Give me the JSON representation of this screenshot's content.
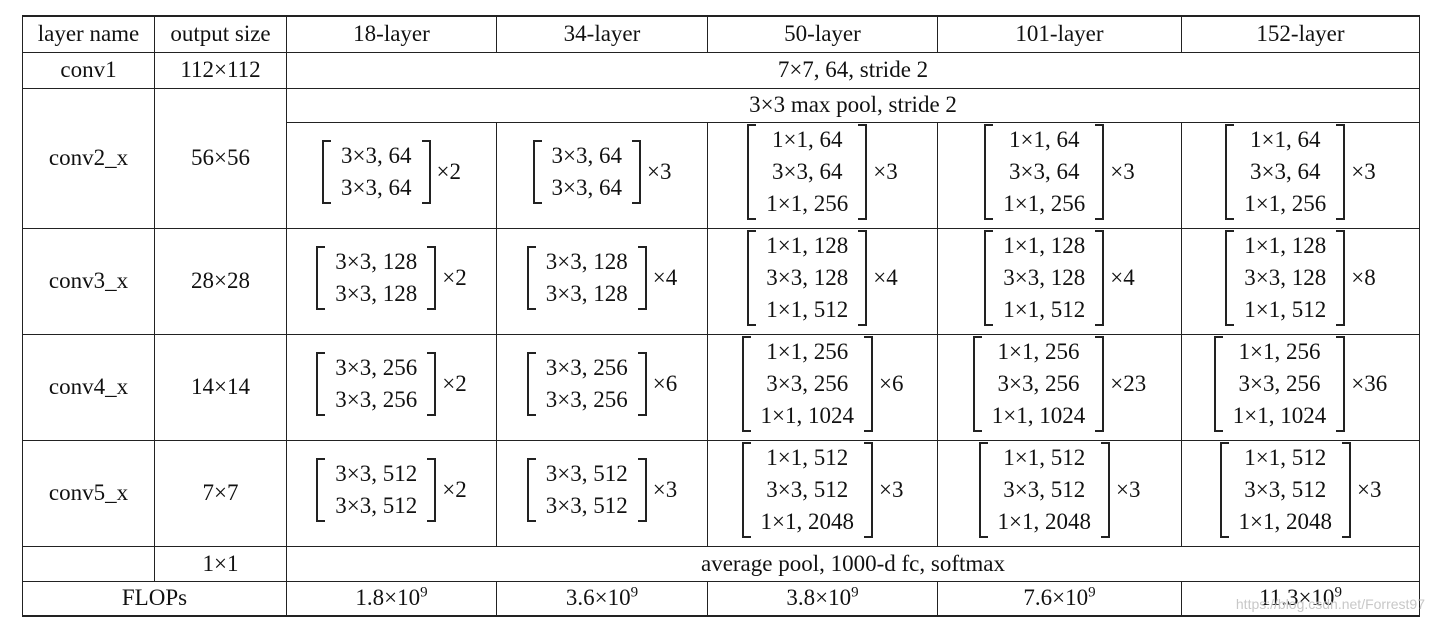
{
  "table": {
    "headers": [
      "layer name",
      "output size",
      "18-layer",
      "34-layer",
      "50-layer",
      "101-layer",
      "152-layer"
    ],
    "conv1": {
      "name": "conv1",
      "size": "112×112",
      "spec": "7×7, 64, stride 2"
    },
    "pool": {
      "spec": "3×3 max pool, stride 2"
    },
    "stages": [
      {
        "name": "conv2_x",
        "size": "56×56",
        "blocks": [
          {
            "lines": [
              "3×3, 64",
              "3×3, 64"
            ],
            "rep": "×2"
          },
          {
            "lines": [
              "3×3, 64",
              "3×3, 64"
            ],
            "rep": "×3"
          },
          {
            "lines": [
              "1×1, 64",
              "3×3, 64",
              "1×1, 256"
            ],
            "rep": "×3"
          },
          {
            "lines": [
              "1×1, 64",
              "3×3, 64",
              "1×1, 256"
            ],
            "rep": "×3"
          },
          {
            "lines": [
              "1×1, 64",
              "3×3, 64",
              "1×1, 256"
            ],
            "rep": "×3"
          }
        ]
      },
      {
        "name": "conv3_x",
        "size": "28×28",
        "blocks": [
          {
            "lines": [
              "3×3, 128",
              "3×3, 128"
            ],
            "rep": "×2"
          },
          {
            "lines": [
              "3×3, 128",
              "3×3, 128"
            ],
            "rep": "×4"
          },
          {
            "lines": [
              "1×1, 128",
              "3×3, 128",
              "1×1, 512"
            ],
            "rep": "×4"
          },
          {
            "lines": [
              "1×1, 128",
              "3×3, 128",
              "1×1, 512"
            ],
            "rep": "×4"
          },
          {
            "lines": [
              "1×1, 128",
              "3×3, 128",
              "1×1, 512"
            ],
            "rep": "×8"
          }
        ]
      },
      {
        "name": "conv4_x",
        "size": "14×14",
        "blocks": [
          {
            "lines": [
              "3×3, 256",
              "3×3, 256"
            ],
            "rep": "×2"
          },
          {
            "lines": [
              "3×3, 256",
              "3×3, 256"
            ],
            "rep": "×6"
          },
          {
            "lines": [
              "1×1, 256",
              "3×3, 256",
              "1×1, 1024"
            ],
            "rep": "×6"
          },
          {
            "lines": [
              "1×1, 256",
              "3×3, 256",
              "1×1, 1024"
            ],
            "rep": "×23"
          },
          {
            "lines": [
              "1×1, 256",
              "3×3, 256",
              "1×1, 1024"
            ],
            "rep": "×36"
          }
        ]
      },
      {
        "name": "conv5_x",
        "size": "7×7",
        "blocks": [
          {
            "lines": [
              "3×3, 512",
              "3×3, 512"
            ],
            "rep": "×2"
          },
          {
            "lines": [
              "3×3, 512",
              "3×3, 512"
            ],
            "rep": "×3"
          },
          {
            "lines": [
              "1×1, 512",
              "3×3, 512",
              "1×1, 2048"
            ],
            "rep": "×3"
          },
          {
            "lines": [
              "1×1, 512",
              "3×3, 512",
              "1×1, 2048"
            ],
            "rep": "×3"
          },
          {
            "lines": [
              "1×1, 512",
              "3×3, 512",
              "1×1, 2048"
            ],
            "rep": "×3"
          }
        ]
      }
    ],
    "final": {
      "size": "1×1",
      "spec": "average pool, 1000-d fc, softmax"
    },
    "flops": {
      "label": "FLOPs",
      "values": [
        {
          "base": "1.8×10",
          "exp": "9"
        },
        {
          "base": "3.6×10",
          "exp": "9"
        },
        {
          "base": "3.8×10",
          "exp": "9"
        },
        {
          "base": "7.6×10",
          "exp": "9"
        },
        {
          "base": "11.3×10",
          "exp": "9"
        }
      ]
    }
  },
  "watermark": "https://blog.csdn.net/Forrest97"
}
